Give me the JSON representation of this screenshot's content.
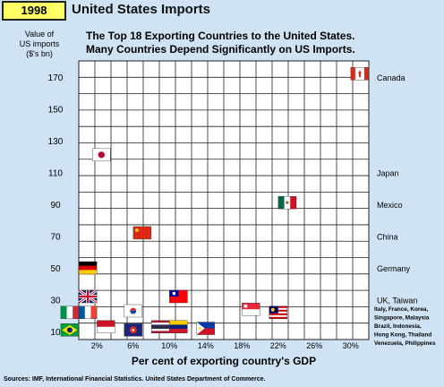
{
  "header": {
    "year": "1998",
    "title": "United States Imports"
  },
  "chart_data": {
    "type": "scatter",
    "title": "The Top 18 Exporting Countries to the United States. Many Countries Depend Significantly on US Imports.",
    "title_lines": [
      "The Top 18 Exporting Countries to the United States.",
      "Many Countries Depend Significantly on US Imports."
    ],
    "ylabel_lines": [
      "Value of",
      "US imports",
      "($'s bn)"
    ],
    "xlabel": "Per cent of exporting country's GDP",
    "ylim": [
      5,
      180
    ],
    "xlim": [
      0,
      32
    ],
    "y_ticks": [
      10,
      30,
      50,
      70,
      90,
      110,
      130,
      150,
      170
    ],
    "x_ticks": [
      2,
      6,
      10,
      14,
      18,
      22,
      26,
      30
    ],
    "x_tick_labels": [
      "2%",
      "6%",
      "10%",
      "14%",
      "18%",
      "22%",
      "26%",
      "30%"
    ],
    "grid": true,
    "points": [
      {
        "country": "Canada",
        "x": 31,
        "y": 172,
        "flag": "canada"
      },
      {
        "country": "Japan",
        "x": 2.5,
        "y": 121,
        "flag": "japan"
      },
      {
        "country": "Mexico",
        "x": 23,
        "y": 91,
        "flag": "mexico"
      },
      {
        "country": "China",
        "x": 7,
        "y": 72,
        "flag": "china"
      },
      {
        "country": "Germany",
        "x": 1,
        "y": 50,
        "flag": "germany"
      },
      {
        "country": "UK",
        "x": 1,
        "y": 32,
        "flag": "uk"
      },
      {
        "country": "Taiwan",
        "x": 11,
        "y": 32,
        "flag": "taiwan"
      },
      {
        "country": "France",
        "x": 1,
        "y": 22,
        "flag": "france"
      },
      {
        "country": "Italy",
        "x": -1,
        "y": 22,
        "flag": "italy"
      },
      {
        "country": "Korea",
        "x": 6,
        "y": 23,
        "flag": "korea"
      },
      {
        "country": "Singapore",
        "x": 19,
        "y": 24,
        "flag": "singapore"
      },
      {
        "country": "Malaysia",
        "x": 22,
        "y": 22,
        "flag": "malaysia"
      },
      {
        "country": "Brazil",
        "x": -1,
        "y": 11,
        "flag": "brazil"
      },
      {
        "country": "Indonesia",
        "x": 3,
        "y": 13,
        "flag": "indonesia"
      },
      {
        "country": "Hong Kong",
        "x": 6,
        "y": 11,
        "flag": "hongkong"
      },
      {
        "country": "Thailand",
        "x": 9,
        "y": 13,
        "flag": "thailand"
      },
      {
        "country": "Venezuela",
        "x": 11,
        "y": 13,
        "flag": "venezuela"
      },
      {
        "country": "Philippines",
        "x": 14,
        "y": 12,
        "flag": "philippines"
      }
    ],
    "right_labels": [
      {
        "text": "Canada",
        "y": 170
      },
      {
        "text": "Japan",
        "y": 110
      },
      {
        "text": "Mexico",
        "y": 90
      },
      {
        "text": "China",
        "y": 70
      },
      {
        "text": "Germany",
        "y": 50
      },
      {
        "text": "UK, Taiwan",
        "y": 30
      }
    ],
    "right_note_lines": [
      "Italy, France, Korea,",
      "Singapore, Malaysia",
      "Brazil, Indonesia,",
      "Hong Kong, Thailand",
      "Venezuela, Philippines"
    ]
  },
  "footer": {
    "sources": "Sources:  IMF, International Financial Statistics.  United States Department of Commerce."
  },
  "colors": {
    "background": "#cfe3f5",
    "grid_line": "#222222",
    "plot_fill": "#ffffff",
    "year_badge": "#ffff66"
  }
}
